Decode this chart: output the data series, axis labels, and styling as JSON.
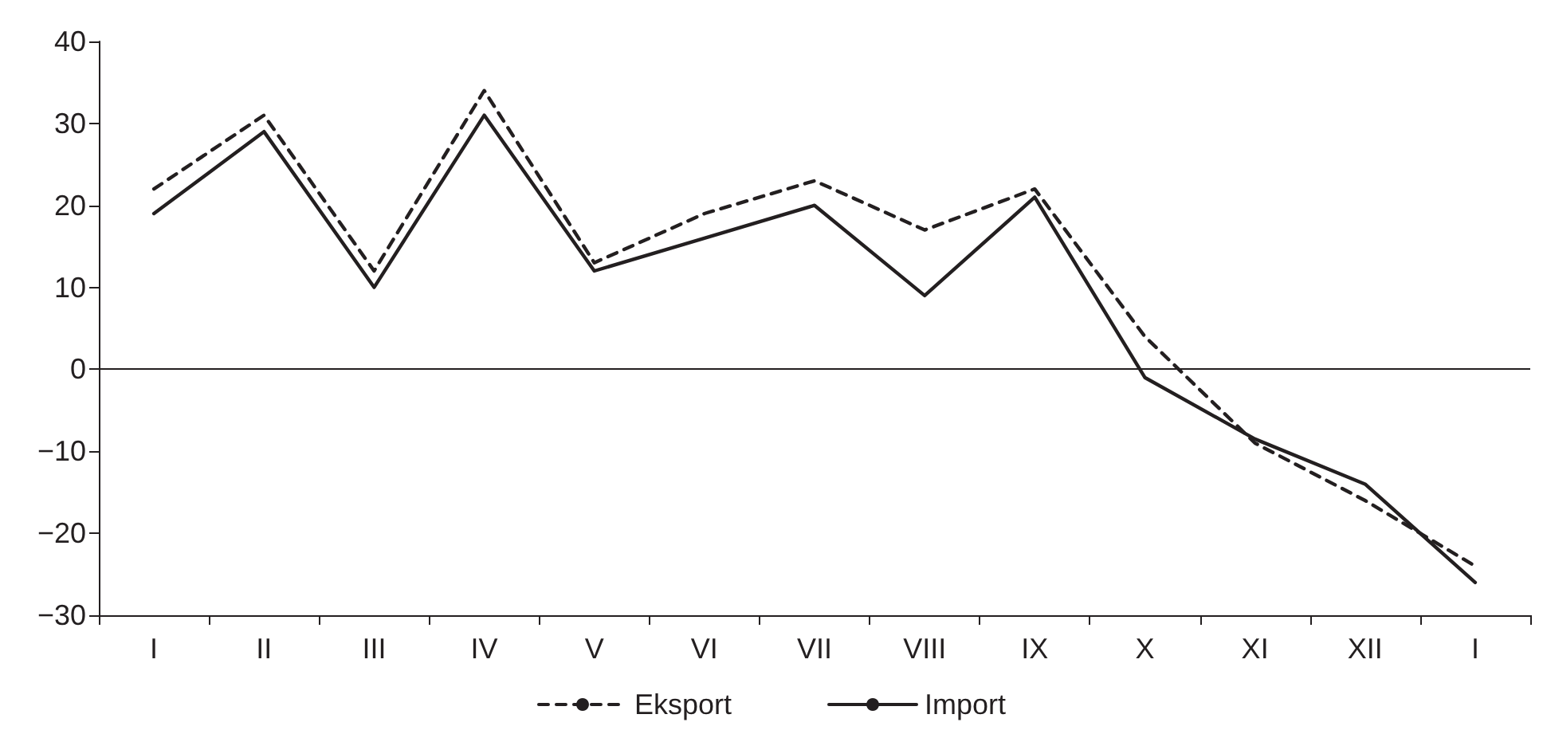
{
  "chart_data": {
    "type": "line",
    "categories": [
      "I",
      "II",
      "III",
      "IV",
      "V",
      "VI",
      "VII",
      "VIII",
      "IX",
      "X",
      "XI",
      "XII",
      "I"
    ],
    "series": [
      {
        "name": "Eksport",
        "color": "#231f20",
        "line_style": "dashed",
        "values": [
          22,
          31,
          12,
          34,
          13,
          19,
          23,
          17,
          22,
          4,
          -9,
          -16,
          -24
        ]
      },
      {
        "name": "Import",
        "color": "#231f20",
        "line_style": "solid",
        "values": [
          19,
          29,
          10,
          31,
          12,
          16,
          20,
          9,
          21,
          -1,
          -8.5,
          -14,
          -26
        ]
      }
    ],
    "ylim": [
      -30,
      40
    ],
    "yticks": [
      -30,
      -20,
      -10,
      0,
      10,
      20,
      30,
      40
    ],
    "ref_lines": [
      {
        "axis": "y",
        "value": 0,
        "color": "#231f20"
      }
    ],
    "grid": false,
    "legend": "bottom",
    "marker": "none"
  }
}
